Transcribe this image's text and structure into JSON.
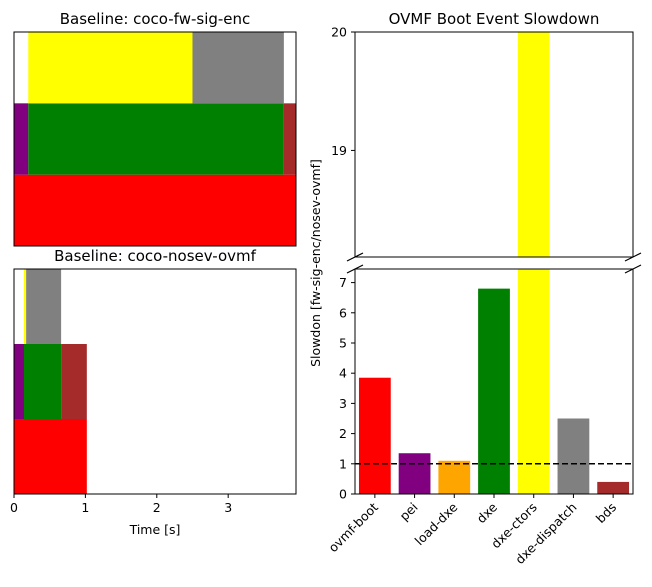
{
  "chart_data": [
    {
      "type": "bar",
      "subtype": "timeline",
      "title": "Baseline: coco-fw-sig-enc",
      "xlim": [
        0,
        3.95
      ],
      "x_ticks_shown": false,
      "rows": [
        {
          "lane": 0,
          "segments": [
            {
              "name": "ovmf-boot",
              "start": 0.0,
              "end": 3.95,
              "color": "#ff0000"
            }
          ]
        },
        {
          "lane": 1,
          "segments": [
            {
              "name": "pei",
              "start": 0.0,
              "end": 0.2,
              "color": "#800080"
            },
            {
              "name": "dxe",
              "start": 0.2,
              "end": 3.78,
              "color": "#008000"
            },
            {
              "name": "bds",
              "start": 3.78,
              "end": 3.95,
              "color": "#a52a2a"
            }
          ]
        },
        {
          "lane": 2,
          "segments": [
            {
              "name": "dxe-ctors",
              "start": 0.2,
              "end": 2.5,
              "color": "#ffff00"
            },
            {
              "name": "dxe-dispatch",
              "start": 2.5,
              "end": 3.78,
              "color": "#808080"
            }
          ]
        }
      ]
    },
    {
      "type": "bar",
      "subtype": "timeline",
      "title": "Baseline: coco-nosev-ovmf",
      "xlabel": "Time [s]",
      "xlim": [
        0,
        3.95
      ],
      "x_ticks": [
        "0",
        "1",
        "2",
        "3"
      ],
      "rows": [
        {
          "lane": 0,
          "segments": [
            {
              "name": "ovmf-boot",
              "start": 0.0,
              "end": 1.02,
              "color": "#ff0000"
            }
          ]
        },
        {
          "lane": 1,
          "segments": [
            {
              "name": "pei",
              "start": 0.0,
              "end": 0.14,
              "color": "#800080"
            },
            {
              "name": "dxe",
              "start": 0.14,
              "end": 0.66,
              "color": "#008000"
            },
            {
              "name": "bds",
              "start": 0.66,
              "end": 1.02,
              "color": "#a52a2a"
            }
          ]
        },
        {
          "lane": 2,
          "segments": [
            {
              "name": "dxe-ctors",
              "start": 0.14,
              "end": 0.17,
              "color": "#ffff00"
            },
            {
              "name": "dxe-dispatch",
              "start": 0.17,
              "end": 0.66,
              "color": "#808080"
            }
          ]
        }
      ]
    },
    {
      "type": "bar",
      "title": "OVMF Boot Event Slowdown",
      "ylabel": "Slowdon [fw-sig-enc/nosev-ovmf]",
      "categories": [
        "ovmf-boot",
        "pei",
        "load-dxe",
        "dxe",
        "dxe-ctors",
        "dxe-dispatch",
        "bds"
      ],
      "values": [
        3.85,
        1.35,
        1.1,
        6.8,
        20.0,
        2.5,
        0.4
      ],
      "colors": [
        "#ff0000",
        "#800080",
        "#ffa500",
        "#008000",
        "#ffff00",
        "#808080",
        "#a52a2a"
      ],
      "broken_axis": true,
      "upper_ylim": [
        18.1,
        20.0
      ],
      "upper_ticks": [
        "19",
        "20"
      ],
      "lower_ylim": [
        0,
        7.45
      ],
      "lower_ticks": [
        "0",
        "1",
        "2",
        "3",
        "4",
        "5",
        "6",
        "7"
      ],
      "baseline": 1,
      "baseline_style": "dashed"
    }
  ]
}
